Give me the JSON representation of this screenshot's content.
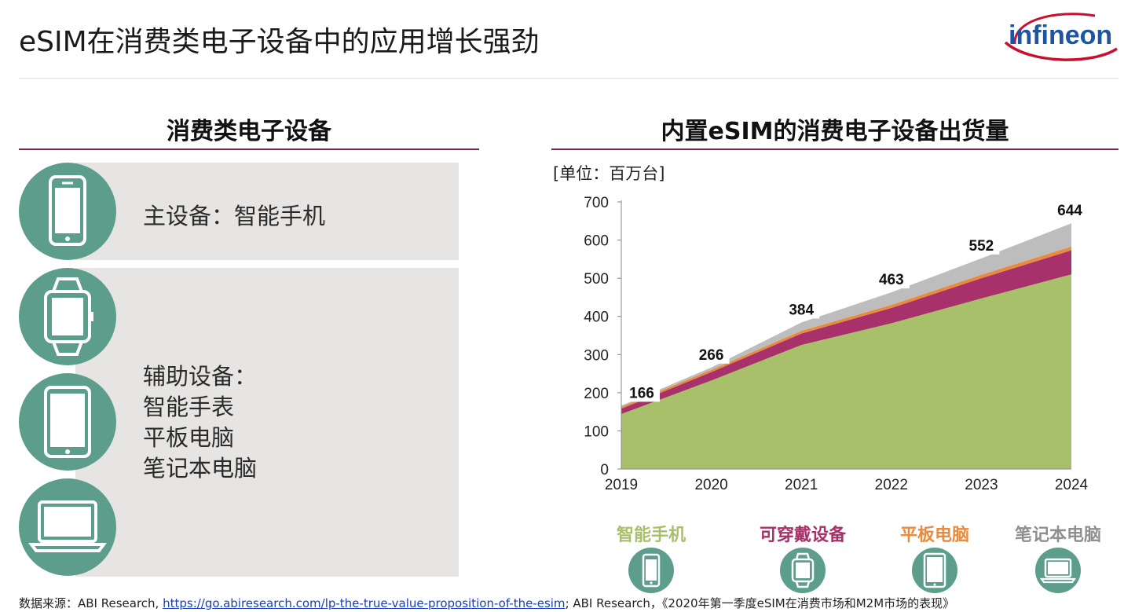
{
  "header": {
    "title": "eSIM在消费类电子设备中的应用增长强劲",
    "logo_text": "infineon"
  },
  "left": {
    "title": "消费类电子设备",
    "primary_label": "主设备：智能手机",
    "aux_lines": [
      "辅助设备：",
      "智能手表",
      "平板电脑",
      "笔记本电脑"
    ],
    "icons": [
      "smartphone-icon",
      "smartwatch-icon",
      "tablet-icon",
      "laptop-icon"
    ]
  },
  "right": {
    "title": "内置eSIM的消费电子设备出货量",
    "unit": "[单位：百万台]"
  },
  "chart_data": {
    "type": "area",
    "stacked": true,
    "x": [
      2019,
      2020,
      2021,
      2022,
      2023,
      2024
    ],
    "x_tick_labels": [
      "2019",
      "2020",
      "2021",
      "2022",
      "2023",
      "2024"
    ],
    "y_ticks": [
      0,
      100,
      200,
      300,
      400,
      500,
      600,
      700
    ],
    "ylim": [
      0,
      700
    ],
    "series": [
      {
        "name": "智能手机",
        "color": "#a9c06a",
        "values": [
          144,
          232,
          325,
          382,
          447,
          510
        ]
      },
      {
        "name": "可穿戴设备",
        "color": "#a8306b",
        "values": [
          14,
          22,
          30,
          40,
          53,
          63
        ]
      },
      {
        "name": "平板电脑",
        "color": "#e98a3c",
        "values": [
          5,
          6,
          7,
          8,
          9,
          10
        ]
      },
      {
        "name": "笔记本电脑",
        "color": "#bdbdbd",
        "values": [
          3,
          6,
          22,
          33,
          43,
          61
        ]
      }
    ],
    "totals": [
      166,
      266,
      384,
      463,
      552,
      644
    ],
    "total_labels": [
      "166",
      "266",
      "384",
      "463",
      "552",
      "644"
    ],
    "legend_placement": "bottom"
  },
  "legend": {
    "items": [
      {
        "label": "智能手机",
        "color": "#a9c06a",
        "icon": "smartphone-icon"
      },
      {
        "label": "可穿戴设备",
        "color": "#a8306b",
        "icon": "smartwatch-icon"
      },
      {
        "label": "平板电脑",
        "color": "#e98a3c",
        "icon": "tablet-icon"
      },
      {
        "label": "笔记本电脑",
        "color": "#8f8f8f",
        "icon": "laptop-icon"
      }
    ]
  },
  "footer": {
    "prefix": "数据来源：ABI Research, ",
    "link": "https://go.abiresearch.com/lp-the-true-value-proposition-of-the-esim",
    "suffix": "; ABI Research，《2020年第一季度eSIM在消费市场和M2M市场的表现》"
  }
}
